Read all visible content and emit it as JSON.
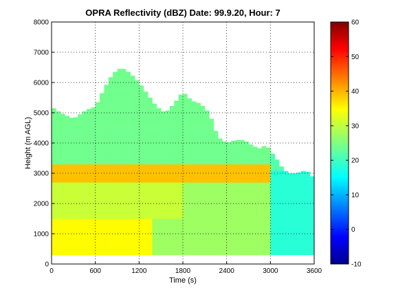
{
  "chart_data": {
    "type": "heatmap",
    "title": "OPRA Reflectivity (dBZ)  Date: 99.9.20, Hour: 7",
    "xlabel": "Time (s)",
    "ylabel": "Height (m AGL)",
    "xlim": [
      0,
      3600
    ],
    "ylim": [
      0,
      8000
    ],
    "xticks": [
      "0",
      "600",
      "1200",
      "1800",
      "2400",
      "3000",
      "3600"
    ],
    "yticks": [
      "0",
      "1000",
      "2000",
      "3000",
      "4000",
      "5000",
      "6000",
      "7000",
      "8000"
    ],
    "grid": true,
    "colormap": "jet",
    "colorbar": {
      "lim": [
        -10,
        60
      ],
      "ticks": [
        "-10",
        "0",
        "10",
        "20",
        "30",
        "40",
        "50",
        "60"
      ]
    },
    "echo_top_profile": {
      "time": [
        0,
        120,
        300,
        480,
        600,
        720,
        840,
        960,
        1080,
        1200,
        1320,
        1440,
        1560,
        1680,
        1800,
        1920,
        2040,
        2160,
        2280,
        2400,
        2520,
        2640,
        2760,
        2880,
        2940,
        3000,
        3060,
        3120,
        3240,
        3360,
        3480,
        3540,
        3600
      ],
      "top_height": [
        5200,
        5000,
        4800,
        5100,
        5200,
        5800,
        6300,
        6500,
        6300,
        6000,
        5600,
        5200,
        5000,
        5300,
        5700,
        5400,
        5300,
        5000,
        4200,
        4000,
        4100,
        4100,
        3900,
        3800,
        4000,
        3700,
        3600,
        3300,
        3000,
        3000,
        3100,
        3000,
        2800
      ]
    },
    "bright_band": {
      "height": [
        2700,
        3300
      ],
      "reflectivity_dBZ": 38
    },
    "layers": [
      {
        "height": [
          300,
          1500
        ],
        "time": [
          0,
          1400
        ],
        "reflectivity_dBZ": 34
      },
      {
        "height": [
          1500,
          3000
        ],
        "time": [
          0,
          1800
        ],
        "reflectivity_dBZ": 30
      },
      {
        "height": [
          300,
          2800
        ],
        "time": [
          1400,
          3000
        ],
        "reflectivity_dBZ": 27
      },
      {
        "height": [
          3300,
          6500
        ],
        "time": [
          0,
          3000
        ],
        "reflectivity_dBZ": 24
      },
      {
        "height": [
          300,
          3000
        ],
        "time": [
          3000,
          3600
        ],
        "reflectivity_dBZ": 19
      }
    ]
  }
}
